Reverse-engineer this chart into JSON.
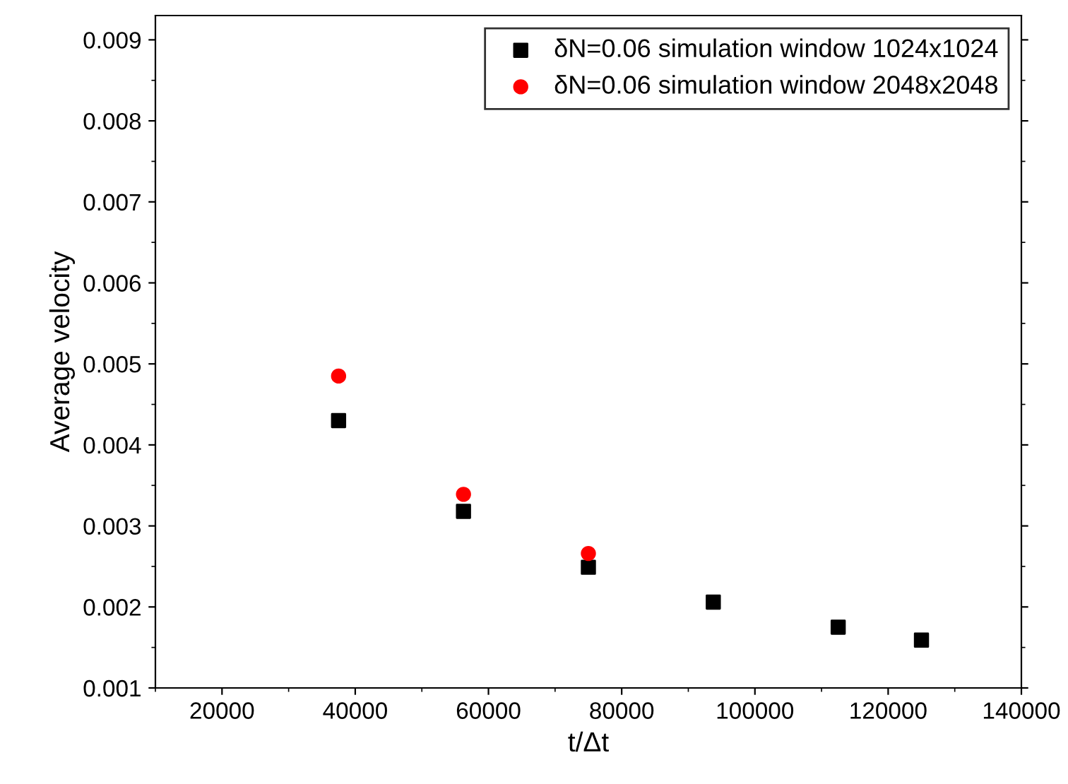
{
  "chart_data": {
    "type": "scatter",
    "xlabel": "t/Δt",
    "ylabel": "Average velocity",
    "xlim": [
      10000,
      140000
    ],
    "xticks": [
      20000,
      40000,
      60000,
      80000,
      100000,
      120000,
      140000
    ],
    "ylim": [
      0.001,
      0.0093
    ],
    "yticks": [
      0.001,
      0.002,
      0.003,
      0.004,
      0.005,
      0.006,
      0.007,
      0.008,
      0.009
    ],
    "grid": false,
    "legend": "top right",
    "series": [
      {
        "name": "δN=0.06 simulation window 1024x1024",
        "color": "#000000",
        "marker": "square",
        "x": [
          37500,
          56250,
          75000,
          93750,
          112500,
          125000
        ],
        "values": [
          0.0043,
          0.00318,
          0.00249,
          0.00206,
          0.00175,
          0.00159
        ]
      },
      {
        "name": "δN=0.06 simulation window 2048x2048",
        "color": "#ff0000",
        "marker": "circle",
        "x": [
          37500,
          56250,
          75000
        ],
        "values": [
          0.00485,
          0.00339,
          0.00266
        ]
      }
    ]
  }
}
